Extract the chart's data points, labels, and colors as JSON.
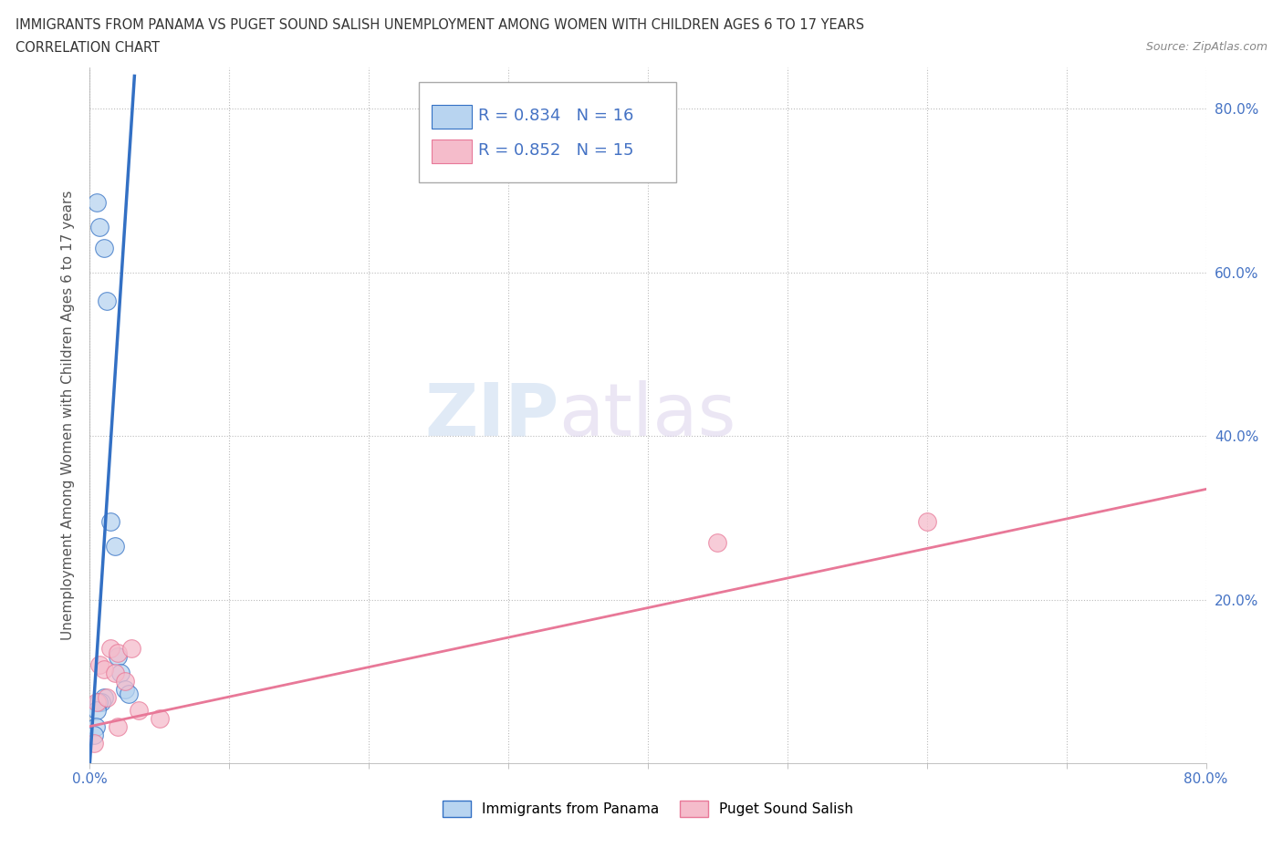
{
  "title_line1": "IMMIGRANTS FROM PANAMA VS PUGET SOUND SALISH UNEMPLOYMENT AMONG WOMEN WITH CHILDREN AGES 6 TO 17 YEARS",
  "title_line2": "CORRELATION CHART",
  "source": "Source: ZipAtlas.com",
  "ylabel": "Unemployment Among Women with Children Ages 6 to 17 years",
  "xlim": [
    0,
    0.8
  ],
  "ylim": [
    0,
    0.85
  ],
  "xticks": [
    0.0,
    0.1,
    0.2,
    0.3,
    0.4,
    0.5,
    0.6,
    0.7,
    0.8
  ],
  "yticks": [
    0.0,
    0.2,
    0.4,
    0.6,
    0.8
  ],
  "xtick_labels_show": {
    "0.0": "0.0%",
    "0.80": "80.0%"
  },
  "ytick_labels_show": {
    "0.20": "20.0%",
    "0.40": "40.0%",
    "0.60": "60.0%",
    "0.80": "80.0%"
  },
  "blue_scatter_x": [
    0.005,
    0.007,
    0.01,
    0.012,
    0.015,
    0.018,
    0.02,
    0.022,
    0.025,
    0.028,
    0.01,
    0.008,
    0.006,
    0.005,
    0.004,
    0.003
  ],
  "blue_scatter_y": [
    0.685,
    0.655,
    0.63,
    0.565,
    0.295,
    0.265,
    0.13,
    0.11,
    0.09,
    0.085,
    0.08,
    0.075,
    0.075,
    0.065,
    0.045,
    0.035
  ],
  "pink_scatter_x": [
    0.003,
    0.005,
    0.007,
    0.01,
    0.012,
    0.015,
    0.018,
    0.02,
    0.025,
    0.03,
    0.035,
    0.05,
    0.45,
    0.6,
    0.02
  ],
  "pink_scatter_y": [
    0.025,
    0.075,
    0.12,
    0.115,
    0.08,
    0.14,
    0.11,
    0.135,
    0.1,
    0.14,
    0.065,
    0.055,
    0.27,
    0.295,
    0.045
  ],
  "blue_line_x": [
    0.0,
    0.032
  ],
  "blue_line_y": [
    0.0,
    0.84
  ],
  "pink_line_x": [
    0.0,
    0.8
  ],
  "pink_line_y": [
    0.045,
    0.335
  ],
  "R_blue": "0.834",
  "N_blue": "16",
  "R_pink": "0.852",
  "N_pink": "15",
  "blue_color": "#b8d4f0",
  "blue_line_color": "#3370c4",
  "pink_color": "#f5bccb",
  "pink_line_color": "#e87898",
  "legend_label_blue": "Immigrants from Panama",
  "legend_label_pink": "Puget Sound Salish",
  "background_color": "#ffffff",
  "grid_color": "#cccccc",
  "title_color": "#333333",
  "axis_label_color": "#555555",
  "tick_color": "#4472c4",
  "R_N_color": "#4472c4"
}
